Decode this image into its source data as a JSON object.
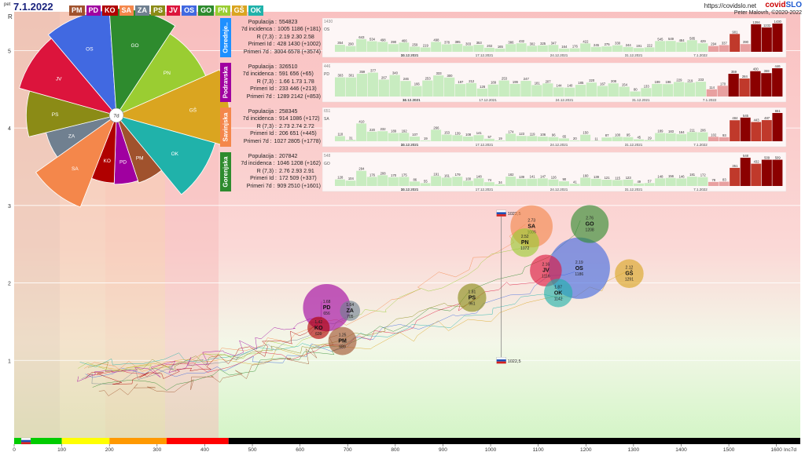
{
  "header": {
    "pet_label": "pet",
    "date": "7.1.2022",
    "site": "https://covidslo.net",
    "brand_a": "covid",
    "brand_b": "SLO",
    "credit": "Peter Malovrh, ©2020-2022"
  },
  "colors": {
    "PM": "#a0522d",
    "PD": "#a000a0",
    "KO": "#b00000",
    "SA": "#f4874b",
    "ZA": "#708090",
    "PS": "#8b8b16",
    "JV": "#dc143c",
    "OS": "#4169e1",
    "GO": "#2e8b2e",
    "PN": "#9acd32",
    "GS": "#daa520",
    "OK": "#20b2aa"
  },
  "region_tags": [
    "PM",
    "PD",
    "KO",
    "SA",
    "ZA",
    "PS",
    "JV",
    "OS",
    "GO",
    "PN",
    "GŠ",
    "OK"
  ],
  "pie": {
    "center_label": "7d",
    "slices": [
      {
        "code": "OS",
        "value": 1186
      },
      {
        "code": "GO",
        "value": 1208
      },
      {
        "code": "PN",
        "value": 1072
      },
      {
        "code": "GŠ",
        "value": 1291
      },
      {
        "code": "OK",
        "value": 1142
      },
      {
        "code": "PM",
        "value": 689
      },
      {
        "code": "PD",
        "value": 656
      },
      {
        "code": "KO",
        "value": 639
      },
      {
        "code": "SA",
        "value": 1086
      },
      {
        "code": "ZA",
        "value": 705
      },
      {
        "code": "PS",
        "value": 961
      },
      {
        "code": "JV",
        "value": 1116
      }
    ]
  },
  "cards": [
    {
      "name": "Osrednje..",
      "color": "#1e90ff",
      "code": "OS",
      "max": "1430",
      "stats": [
        [
          "Populacija",
          "554823"
        ],
        [
          "7d incidenca",
          "1005 1186 (+181)"
        ],
        [
          "R (7,3)",
          "2.19 2.30 2.58"
        ],
        [
          "Primeri Id",
          "428 1430 (+1002)"
        ],
        [
          "Primeri 7d",
          "3004 6578 (+3574)"
        ]
      ],
      "values": [
        354,
        290,
        643,
        534,
        498,
        390,
        466,
        259,
        219,
        498,
        378,
        395,
        303,
        353,
        202,
        165,
        386,
        432,
        302,
        325,
        347,
        164,
        176,
        422,
        245,
        275,
        330,
        244,
        191,
        222,
        545,
        549,
        484,
        585,
        429,
        294,
        337,
        901,
        390,
        1394,
        1232,
        1430
      ]
    },
    {
      "name": "Podravska",
      "color": "#a000a0",
      "code": "PD",
      "max": "446",
      "stats": [
        [
          "Populacija",
          "326510"
        ],
        [
          "7d incidenca",
          "591 656 (+65)"
        ],
        [
          "R (7,3)",
          "1.66 1.73 1.78"
        ],
        [
          "Primeri Id",
          "233 446 (+213)"
        ],
        [
          "Primeri 7d",
          "1289 2142 (+853)"
        ]
      ],
      "values": [
        303,
        301,
        359,
        377,
        267,
        340,
        246,
        166,
        253,
        333,
        300,
        197,
        212,
        126,
        189,
        253,
        199,
        247,
        181,
        207,
        144,
        140,
        185,
        220,
        167,
        208,
        154,
        80,
        133,
        199,
        196,
        229,
        219,
        233,
        114,
        170,
        359,
        284,
        400,
        369,
        446
      ]
    },
    {
      "name": "Savinjska",
      "color": "#f4874b",
      "code": "SA",
      "max": "651",
      "stats": [
        [
          "Populacija",
          "258345"
        ],
        [
          "7d incidenca",
          "914 1086 (+172)"
        ],
        [
          "R (7,3)",
          "2.73 2.74 2.72"
        ],
        [
          "Primeri Id",
          "206 651 (+445)"
        ],
        [
          "Primeri 7d",
          "1027 2805 (+1778)"
        ]
      ],
      "values": [
        118,
        31,
        410,
        220,
        232,
        189,
        192,
        107,
        19,
        266,
        153,
        139,
        108,
        141,
        57,
        19,
        174,
        123,
        119,
        106,
        96,
        65,
        20,
        150,
        11,
        87,
        100,
        95,
        45,
        29,
        189,
        183,
        164,
        211,
        206,
        102,
        93,
        484,
        545,
        443,
        487,
        651
      ]
    },
    {
      "name": "Gorenjska",
      "color": "#2e8b2e",
      "code": "GO",
      "max": "548",
      "stats": [
        [
          "Populacija",
          "207842"
        ],
        [
          "7d incidenca",
          "1046 1208 (+162)"
        ],
        [
          "R (7,3)",
          "2.76 2.93 2.91"
        ],
        [
          "Primeri Id",
          "172 509 (+337)"
        ],
        [
          "Primeri 7d",
          "909 2510 (+1601)"
        ]
      ],
      "values": [
        128,
        104,
        294,
        176,
        208,
        170,
        175,
        86,
        55,
        191,
        161,
        179,
        100,
        148,
        74,
        34,
        182,
        139,
        141,
        147,
        126,
        90,
        41,
        160,
        139,
        121,
        115,
        123,
        49,
        57,
        148,
        156,
        146,
        181,
        172,
        78,
        83,
        351,
        548,
        432,
        509,
        509
      ]
    }
  ],
  "date_ticks": [
    "31.12.2021",
    "10.12.2021",
    "17.12.2021",
    "24.12.2021",
    "31.12.2021",
    "7.1.2022"
  ],
  "chart_data": {
    "type": "scatter",
    "title": "",
    "xlabel": "Inc7d",
    "ylabel": "R",
    "xlim": [
      0,
      1650
    ],
    "ylim": [
      0,
      5.5
    ],
    "x_ticks": [
      0,
      100,
      200,
      300,
      400,
      500,
      600,
      700,
      800,
      900,
      1000,
      1100,
      1200,
      1300,
      1400,
      1500,
      1600
    ],
    "y_ticks": [
      1,
      2,
      3,
      4,
      5
    ],
    "points": [
      {
        "code": "OS",
        "x": 1186,
        "y": 2.19,
        "size": 554823
      },
      {
        "code": "GO",
        "x": 1208,
        "y": 2.76,
        "size": 207842
      },
      {
        "code": "SA",
        "x": 1086,
        "y": 2.73,
        "size": 258345
      },
      {
        "code": "PN",
        "x": 1072,
        "y": 2.52,
        "size": 118000
      },
      {
        "code": "JV",
        "x": 1116,
        "y": 2.16,
        "size": 146000
      },
      {
        "code": "OK",
        "x": 1142,
        "y": 1.87,
        "size": 116000
      },
      {
        "code": "GŠ",
        "x": 1291,
        "y": 2.12,
        "size": 118000
      },
      {
        "code": "PS",
        "x": 961,
        "y": 1.81,
        "size": 116000
      },
      {
        "code": "PD",
        "x": 656,
        "y": 1.68,
        "size": 326510
      },
      {
        "code": "ZA",
        "x": 705,
        "y": 1.64,
        "size": 57000
      },
      {
        "code": "KO",
        "x": 639,
        "y": 1.42,
        "size": 70000
      },
      {
        "code": "PM",
        "x": 689,
        "y": 1.25,
        "size": 114000
      }
    ],
    "slovenia": [
      {
        "x": 1022.5,
        "y": 2.9,
        "label": "1022,5"
      },
      {
        "x": 1022.5,
        "y": 1.0,
        "label": "1022,5"
      }
    ],
    "x_color_bands": [
      "#00cc00",
      "#ffff00",
      "#ff9900",
      "#ff0000",
      "#000000"
    ]
  }
}
